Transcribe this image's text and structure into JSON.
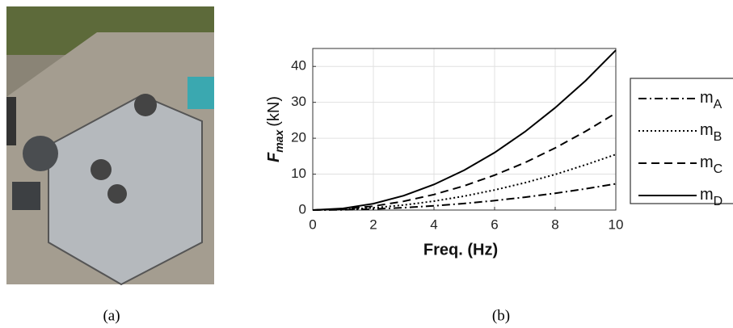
{
  "chart_data": {
    "type": "line",
    "xlabel": "Freq. (Hz)",
    "ylabel": {
      "main": "F",
      "sub": "max",
      "unit": "(kN)"
    },
    "x": [
      0,
      1,
      2,
      3,
      4,
      5,
      6,
      7,
      8,
      9,
      10
    ],
    "series": [
      {
        "name": "m",
        "sub": "A",
        "color": "#000000",
        "dash": "dashdot",
        "values": [
          0,
          0.07,
          0.29,
          0.66,
          1.17,
          1.83,
          2.63,
          3.58,
          4.67,
          5.91,
          7.3
        ]
      },
      {
        "name": "m",
        "sub": "B",
        "color": "#000000",
        "dash": "dotted",
        "values": [
          0,
          0.16,
          0.62,
          1.4,
          2.48,
          3.88,
          5.58,
          7.6,
          9.92,
          12.6,
          15.5
        ]
      },
      {
        "name": "m",
        "sub": "C",
        "color": "#000000",
        "dash": "dashed",
        "values": [
          0,
          0.27,
          1.08,
          2.43,
          4.32,
          6.75,
          9.72,
          13.2,
          17.3,
          21.9,
          27
        ]
      },
      {
        "name": "m",
        "sub": "D",
        "color": "#000000",
        "dash": "solid",
        "values": [
          0,
          0.45,
          1.78,
          4.0,
          7.12,
          11.1,
          16.0,
          21.8,
          28.5,
          36.0,
          44.5
        ]
      }
    ],
    "xlim": [
      0,
      10
    ],
    "xticks": [
      0,
      2,
      4,
      6,
      8,
      10
    ],
    "ylim": [
      0,
      45
    ],
    "yticks": [
      0,
      10,
      20,
      30,
      40
    ],
    "grid": true,
    "legend": "right",
    "captions": [
      "(a)",
      "(b)"
    ]
  }
}
